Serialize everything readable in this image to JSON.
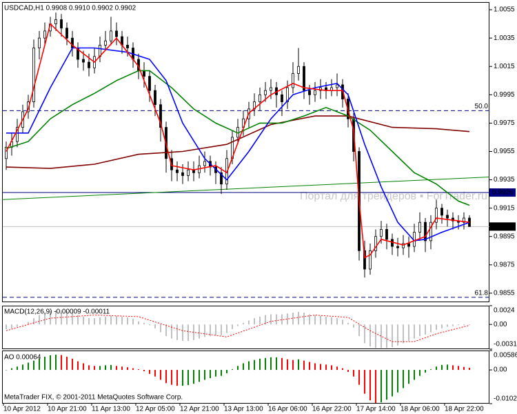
{
  "chart_data": [
    {
      "type": "candlestick",
      "title": "USDCAD,H1  0.9908 0.9910 0.9902 0.9902",
      "categories": [
        "10 Apr 2012",
        null,
        null,
        null,
        null,
        null,
        null,
        null,
        "10 Apr 21:00",
        null,
        null,
        null,
        null,
        null,
        null,
        null,
        "11 Apr 13:00",
        null,
        null,
        null,
        null,
        null,
        null,
        null,
        "12 Apr 05:00",
        null,
        null,
        null,
        null,
        null,
        null,
        null,
        "12 Apr 21:00",
        null,
        null,
        null,
        null,
        null,
        null,
        null,
        "13 Apr 13:00",
        null,
        null,
        null,
        null,
        null,
        null,
        null,
        "16 Apr 06:00",
        null,
        null,
        null,
        null,
        null,
        null,
        null,
        "16 Apr 22:00",
        null,
        null,
        null,
        null,
        null,
        null,
        null,
        "17 Apr 14:00",
        null,
        null,
        null,
        null,
        null,
        null,
        null,
        "18 Apr 06:00",
        null,
        null,
        null,
        null,
        null,
        null,
        null,
        "18 Apr 22:00",
        null,
        null,
        null,
        null
      ],
      "open": [
        0.995,
        0.9958,
        0.9962,
        0.9972,
        0.9983,
        0.999,
        1.0028,
        1.0035,
        1.004,
        1.0045,
        1.0048,
        1.0042,
        1.0035,
        1.0028,
        1.002,
        1.0018,
        1.0014,
        1.0022,
        1.003,
        1.0033,
        1.004,
        1.0036,
        1.003,
        1.0028,
        1.002,
        1.0012,
        1.0008,
        0.9998,
        0.9988,
        0.9972,
        0.995,
        0.9942,
        0.994,
        0.9938,
        0.9942,
        0.994,
        0.9945,
        0.9948,
        0.9944,
        0.994,
        0.9932,
        0.995,
        0.9965,
        0.9972,
        0.9978,
        0.9985,
        0.999,
        0.9995,
        0.9998,
        1.0,
        0.9995,
        0.999,
        1.0,
        1.001,
        1.0015,
        0.9998,
        0.9995,
        0.9998,
        1.0,
        0.9998,
        1.0,
        1.0002,
        0.9992,
        0.9978,
        0.9955,
        0.9885,
        0.9872,
        0.9885,
        0.9895,
        0.99,
        0.9893,
        0.9888,
        0.9887,
        0.989,
        0.9888,
        0.9898,
        0.9905,
        0.9892,
        0.9905,
        0.9915,
        0.991,
        0.9908,
        0.9906,
        0.9905,
        0.9908
      ],
      "high": [
        0.9962,
        0.9968,
        0.9978,
        0.9988,
        0.9995,
        1.0034,
        1.004,
        1.0046,
        1.005,
        1.0053,
        1.0052,
        1.0046,
        1.004,
        1.0032,
        1.0026,
        1.0024,
        1.0028,
        1.0036,
        1.004,
        1.005,
        1.0046,
        1.004,
        1.0036,
        1.0032,
        1.0024,
        1.0018,
        1.0012,
        1.0002,
        0.9992,
        0.9976,
        0.9956,
        0.9948,
        0.9946,
        0.9948,
        0.9948,
        0.9952,
        0.9955,
        0.9952,
        0.9948,
        0.9944,
        0.9956,
        0.997,
        0.9978,
        0.9984,
        0.999,
        0.9996,
        1.0,
        1.0004,
        1.0006,
        1.0004,
        0.9998,
        1.0005,
        1.0018,
        1.0028,
        1.0018,
        1.0002,
        1.0004,
        1.0006,
        1.0004,
        1.0006,
        1.001,
        1.0006,
        0.9996,
        0.9982,
        0.9958,
        0.9892,
        0.989,
        0.99,
        0.9906,
        0.9904,
        0.9897,
        0.9894,
        0.9896,
        0.9895,
        0.9904,
        0.9912,
        0.9908,
        0.991,
        0.9921,
        0.9918,
        0.9914,
        0.9912,
        0.991,
        0.9912,
        0.991
      ],
      "low": [
        0.9942,
        0.9952,
        0.9958,
        0.9968,
        0.9978,
        0.9986,
        1.002,
        1.003,
        1.0036,
        1.004,
        1.0036,
        1.003,
        1.0022,
        1.0014,
        1.0012,
        1.0008,
        1.001,
        1.0018,
        1.0026,
        1.003,
        1.003,
        1.0024,
        1.0022,
        1.0014,
        1.0006,
        1.0,
        0.999,
        0.998,
        0.9962,
        0.994,
        0.9934,
        0.9934,
        0.9932,
        0.9934,
        0.9934,
        0.9936,
        0.994,
        0.9938,
        0.9932,
        0.9925,
        0.9928,
        0.9946,
        0.996,
        0.9966,
        0.9972,
        0.998,
        0.9984,
        0.999,
        0.9992,
        0.9986,
        0.998,
        0.9985,
        0.9996,
        1.0005,
        0.9992,
        0.9988,
        0.999,
        0.9992,
        0.9992,
        0.9994,
        0.9994,
        0.9986,
        0.9972,
        0.9948,
        0.9878,
        0.9866,
        0.9868,
        0.988,
        0.989,
        0.9886,
        0.9882,
        0.9881,
        0.9882,
        0.988,
        0.9884,
        0.9892,
        0.9884,
        0.9886,
        0.99,
        0.9904,
        0.9902,
        0.99,
        0.99,
        0.99,
        0.9902
      ],
      "close": [
        0.9958,
        0.9962,
        0.9972,
        0.9983,
        0.999,
        1.0028,
        1.0035,
        1.004,
        1.0045,
        1.0048,
        1.0042,
        1.0035,
        1.0028,
        1.002,
        1.0018,
        1.0014,
        1.0022,
        1.003,
        1.0033,
        1.004,
        1.0036,
        1.003,
        1.0028,
        1.002,
        1.0012,
        1.0008,
        0.9998,
        0.9988,
        0.9972,
        0.995,
        0.9942,
        0.994,
        0.9938,
        0.9942,
        0.994,
        0.9945,
        0.9948,
        0.9944,
        0.994,
        0.9932,
        0.995,
        0.9965,
        0.9972,
        0.9978,
        0.9985,
        0.999,
        0.9995,
        0.9998,
        1.0,
        0.9995,
        0.999,
        1.0,
        1.001,
        1.0015,
        0.9998,
        0.9995,
        0.9998,
        1.0,
        0.9998,
        1.0,
        1.0002,
        0.9992,
        0.9978,
        0.9955,
        0.9885,
        0.9872,
        0.9885,
        0.9895,
        0.99,
        0.9893,
        0.9888,
        0.9887,
        0.989,
        0.9888,
        0.9898,
        0.9905,
        0.9892,
        0.9905,
        0.9915,
        0.991,
        0.9908,
        0.9906,
        0.9905,
        0.9908,
        0.9902
      ],
      "bull_color": "#ffffff",
      "bear_color": "#000000",
      "series": [
        {
          "color": "#800000",
          "x": [
            0,
            8,
            16,
            24,
            32,
            40,
            48,
            56,
            62,
            70,
            78,
            84
          ],
          "values": [
            0.9944,
            0.9943,
            0.9946,
            0.9953,
            0.9955,
            0.996,
            0.9974,
            0.998,
            0.998,
            0.9972,
            0.9971,
            0.9969
          ]
        },
        {
          "color": "#008000",
          "x": [
            0,
            4,
            8,
            12,
            16,
            20,
            24,
            26,
            30,
            34,
            38,
            42,
            46,
            50,
            54,
            58,
            62,
            66,
            70,
            74,
            78,
            82,
            84
          ],
          "values": [
            0.9957,
            0.9962,
            0.9978,
            0.9988,
            0.9996,
            1.0005,
            1.0012,
            1.0012,
            1.0,
            0.9985,
            0.9975,
            0.9968,
            0.9975,
            0.9975,
            0.998,
            0.9986,
            0.998,
            0.997,
            0.9955,
            0.994,
            0.9932,
            0.992,
            0.9917
          ]
        },
        {
          "color": "#0000ff",
          "x": [
            0,
            4,
            8,
            12,
            16,
            22,
            26,
            29,
            32,
            36,
            40,
            44,
            48,
            52,
            56,
            60,
            62,
            65,
            68,
            71,
            74,
            76,
            79,
            84
          ],
          "values": [
            0.9968,
            0.9968,
            1.0,
            1.0028,
            1.0028,
            1.0025,
            1.002,
            1.0005,
            0.9975,
            0.995,
            0.9935,
            0.9955,
            0.9978,
            0.9995,
            1.0,
            1.0003,
            0.9995,
            0.996,
            0.993,
            0.9905,
            0.9892,
            0.9893,
            0.9898,
            0.9905
          ]
        },
        {
          "color": "#ff0000",
          "x": [
            0,
            4,
            8,
            12,
            16,
            20,
            24,
            28,
            30,
            34,
            38,
            40,
            44,
            48,
            52,
            54,
            58,
            61,
            63,
            64,
            65,
            66,
            68,
            72,
            76,
            78,
            80,
            84
          ],
          "values": [
            0.9955,
            0.9985,
            1.0045,
            1.003,
            1.0018,
            1.0035,
            1.0015,
            0.9975,
            0.9945,
            0.9942,
            0.9945,
            0.994,
            0.9982,
            0.9995,
            1.0003,
            1.0,
            0.9998,
            0.9998,
            0.997,
            0.992,
            0.988,
            0.9882,
            0.9893,
            0.9889,
            0.9895,
            0.9908,
            0.9907,
            0.9905
          ]
        }
      ],
      "trendline": {
        "color": "#008000",
        "x": [
          -0.75,
          87.6
        ],
        "values": [
          0.9921,
          0.9937
        ]
      },
      "hlines": [
        {
          "value": 0.99838,
          "label": "50.0",
          "color": "#000080",
          "style": "dashed"
        },
        {
          "value": 0.98521,
          "label": "61.8",
          "color": "#000080",
          "style": "dashed"
        },
        {
          "value": 0.9926,
          "color": "#000080",
          "style": "solid",
          "price_tag": true
        },
        {
          "value": 0.9902,
          "color": "#c0c0c0",
          "style": "solid",
          "price_tag": true,
          "tag_color": "#000000"
        }
      ],
      "ylim": [
        0.98491,
        1.00604
      ],
      "yticks": [
        1.0055,
        1.0035,
        1.0015,
        0.9995,
        0.9975,
        0.9955,
        0.9935,
        0.9915,
        0.9895,
        0.9875,
        0.9855
      ]
    },
    {
      "type": "macd",
      "title": "MACD(12,26,9) -0.00009 -0.00011",
      "color": "#c0c0c0",
      "values": [
        -0.0006,
        -0.0005,
        -0.0003,
        0.0,
        0.0003,
        0.0008,
        0.0012,
        0.0015,
        0.0017,
        0.0018,
        0.0018,
        0.0017,
        0.0015,
        0.0012,
        0.001,
        0.0008,
        0.0008,
        0.0009,
        0.001,
        0.0011,
        0.0011,
        0.001,
        0.0009,
        0.0007,
        0.0004,
        0.0002,
        -0.0001,
        -0.0005,
        -0.001,
        -0.0015,
        -0.0018,
        -0.002,
        -0.0021,
        -0.0021,
        -0.002,
        -0.0018,
        -0.0016,
        -0.0015,
        -0.0014,
        -0.0014,
        -0.0011,
        -0.0006,
        -0.0002,
        0.0002,
        0.0005,
        0.0008,
        0.001,
        0.0012,
        0.0013,
        0.0013,
        0.0013,
        0.0014,
        0.0015,
        0.0016,
        0.0015,
        0.0013,
        0.0012,
        0.0011,
        0.001,
        0.0009,
        0.0008,
        0.0006,
        0.0002,
        -0.0004,
        -0.0015,
        -0.0024,
        -0.0028,
        -0.003,
        -0.003,
        -0.003,
        -0.0029,
        -0.0027,
        -0.0024,
        -0.0021,
        -0.0018,
        -0.0015,
        -0.0013,
        -0.001,
        -0.0007,
        -0.0005,
        -0.0003,
        -0.0002,
        -0.0001,
        -0.0001,
        -9e-05
      ],
      "signal": {
        "color": "#ff0000",
        "x": [
          0,
          8,
          16,
          24,
          32,
          40,
          48,
          56,
          62,
          66,
          70,
          74,
          78,
          84
        ],
        "values": [
          -0.0008,
          0.0008,
          0.0012,
          0.001,
          -0.0008,
          -0.0016,
          0.0004,
          0.0012,
          0.0009,
          -0.0008,
          -0.0022,
          -0.0022,
          -0.0012,
          -0.00011
        ]
      },
      "ylim": [
        -0.00316,
        0.0024
      ],
      "yticks": [
        0.0024,
        {
          "value": 0,
          "label": "0.00"
        },
        -0.00316
      ]
    },
    {
      "type": "ao",
      "title": "AO 0.00064",
      "up_color": "#008000",
      "down_color": "#ff0000",
      "values": [
        0.0,
        0.0005,
        0.001,
        0.0016,
        0.0022,
        0.0028,
        0.0034,
        0.004,
        0.0044,
        0.0046,
        0.0045,
        0.004,
        0.0034,
        0.0026,
        0.002,
        0.0014,
        0.0012,
        0.0012,
        0.0014,
        0.0015,
        0.0012,
        0.001,
        0.0008,
        0.0005,
        0.0002,
        -0.0004,
        -0.0012,
        -0.002,
        -0.003,
        -0.004,
        -0.0045,
        -0.0048,
        -0.0048,
        -0.0046,
        -0.0042,
        -0.0036,
        -0.003,
        -0.0025,
        -0.002,
        -0.0018,
        -0.001,
        0.0002,
        0.0012,
        0.002,
        0.0026,
        0.003,
        0.0034,
        0.0036,
        0.0038,
        0.0038,
        0.0036,
        0.0032,
        0.003,
        0.0032,
        0.0028,
        0.0024,
        0.002,
        0.0018,
        0.0016,
        0.0014,
        0.001,
        0.0005,
        -0.0006,
        -0.002,
        -0.0045,
        -0.0072,
        -0.0092,
        -0.01,
        -0.0098,
        -0.009,
        -0.008,
        -0.0068,
        -0.0055,
        -0.0042,
        -0.003,
        -0.0018,
        -0.0008,
        0.0002,
        0.001,
        0.0015,
        0.0016,
        0.0014,
        0.0012,
        0.0009,
        0.00064
      ],
      "ylim": [
        -0.0102,
        0.00586
      ],
      "yticks": [
        0.00586,
        {
          "value": 0,
          "label": "0.00"
        },
        -0.0102
      ]
    }
  ],
  "watermark": "Портал для трейдеров ▪ ForTrader.ru",
  "footer": "MetaTrader FIX, © 2001-2011 MetaQuotes Software Corp."
}
